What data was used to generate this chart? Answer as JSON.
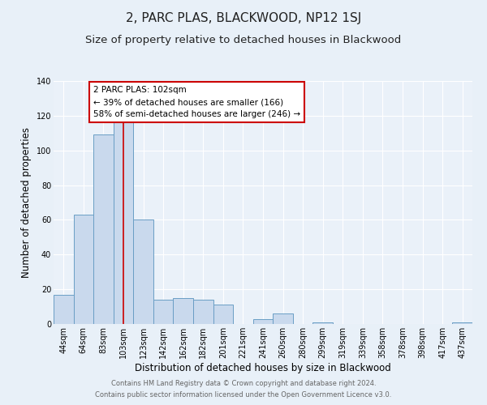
{
  "title": "2, PARC PLAS, BLACKWOOD, NP12 1SJ",
  "subtitle": "Size of property relative to detached houses in Blackwood",
  "xlabel": "Distribution of detached houses by size in Blackwood",
  "ylabel": "Number of detached properties",
  "bar_labels": [
    "44sqm",
    "64sqm",
    "83sqm",
    "103sqm",
    "123sqm",
    "142sqm",
    "162sqm",
    "182sqm",
    "201sqm",
    "221sqm",
    "241sqm",
    "260sqm",
    "280sqm",
    "299sqm",
    "319sqm",
    "339sqm",
    "358sqm",
    "378sqm",
    "398sqm",
    "417sqm",
    "437sqm"
  ],
  "bar_values": [
    17,
    63,
    109,
    117,
    60,
    14,
    15,
    14,
    11,
    0,
    3,
    6,
    0,
    1,
    0,
    0,
    0,
    0,
    0,
    0,
    1
  ],
  "bar_color": "#c9d9ed",
  "bar_edge_color": "#6a9ec5",
  "vline_x": 3,
  "vline_color": "#cc0000",
  "ylim": [
    0,
    140
  ],
  "yticks": [
    0,
    20,
    40,
    60,
    80,
    100,
    120,
    140
  ],
  "annotation_title": "2 PARC PLAS: 102sqm",
  "annotation_line1": "← 39% of detached houses are smaller (166)",
  "annotation_line2": "58% of semi-detached houses are larger (246) →",
  "annotation_box_color": "#ffffff",
  "annotation_box_edge": "#cc0000",
  "footer1": "Contains HM Land Registry data © Crown copyright and database right 2024.",
  "footer2": "Contains public sector information licensed under the Open Government Licence v3.0.",
  "bg_color": "#e8f0f8",
  "plot_bg_color": "#eaf1f9",
  "grid_color": "#ffffff",
  "title_fontsize": 11,
  "subtitle_fontsize": 9.5,
  "axis_label_fontsize": 8.5,
  "tick_fontsize": 7,
  "annotation_fontsize": 7.5,
  "footer_fontsize": 6.0
}
